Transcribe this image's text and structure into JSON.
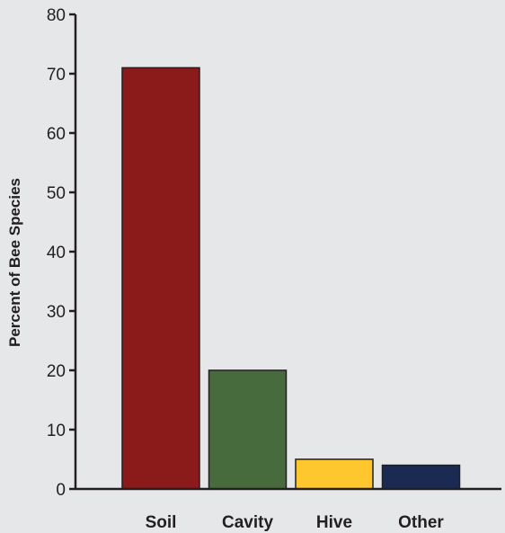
{
  "chart_data": {
    "type": "bar",
    "categories": [
      "Soil",
      "Cavity",
      "Hive",
      "Other"
    ],
    "values": [
      71,
      20,
      5,
      4
    ],
    "title": "",
    "xlabel": "",
    "ylabel": "Percent of Bee Species",
    "ylim": [
      0,
      80
    ],
    "yticks": [
      0,
      10,
      20,
      30,
      40,
      50,
      60,
      70,
      80
    ],
    "grid": false,
    "legend": "none",
    "colors": [
      "#8b1a1a",
      "#486b3d",
      "#fec72e",
      "#1a2a52"
    ],
    "background": "#e6e7e8",
    "axis_color": "#231f20"
  }
}
